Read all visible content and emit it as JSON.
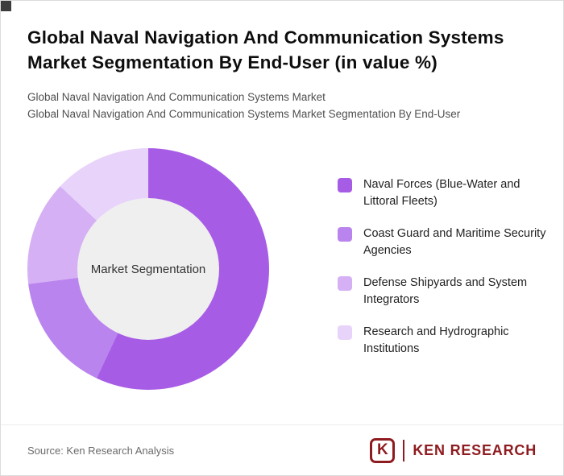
{
  "header": {
    "title": "Global Naval Navigation And Communication Systems Market Segmentation By End-User (in value %)",
    "subtitle1": "Global Naval Navigation And Communication Systems Market",
    "subtitle2": "Global Naval Navigation And Communication Systems Market Segmentation By End-User"
  },
  "chart_data": {
    "type": "pie",
    "donut": true,
    "title": "Global Naval Navigation And Communication Systems Market Segmentation By End-User (in value %)",
    "center_label": "Market Segmentation",
    "legend_position": "right",
    "segments": [
      {
        "label": "Naval Forces (Blue-Water and Littoral Fleets)",
        "value": 57,
        "color": "#a75ce6"
      },
      {
        "label": "Coast Guard and Maritime Security Agencies",
        "value": 16,
        "color": "#ba84ee"
      },
      {
        "label": "Defense Shipyards and System Integrators",
        "value": 14,
        "color": "#d6b0f4"
      },
      {
        "label": "Research and Hydrographic Institutions",
        "value": 13,
        "color": "#e8d3fa"
      }
    ]
  },
  "footer": {
    "source": "Source: Ken Research Analysis",
    "logo_icon_letter": "K",
    "logo_text": "KEN RESEARCH"
  }
}
